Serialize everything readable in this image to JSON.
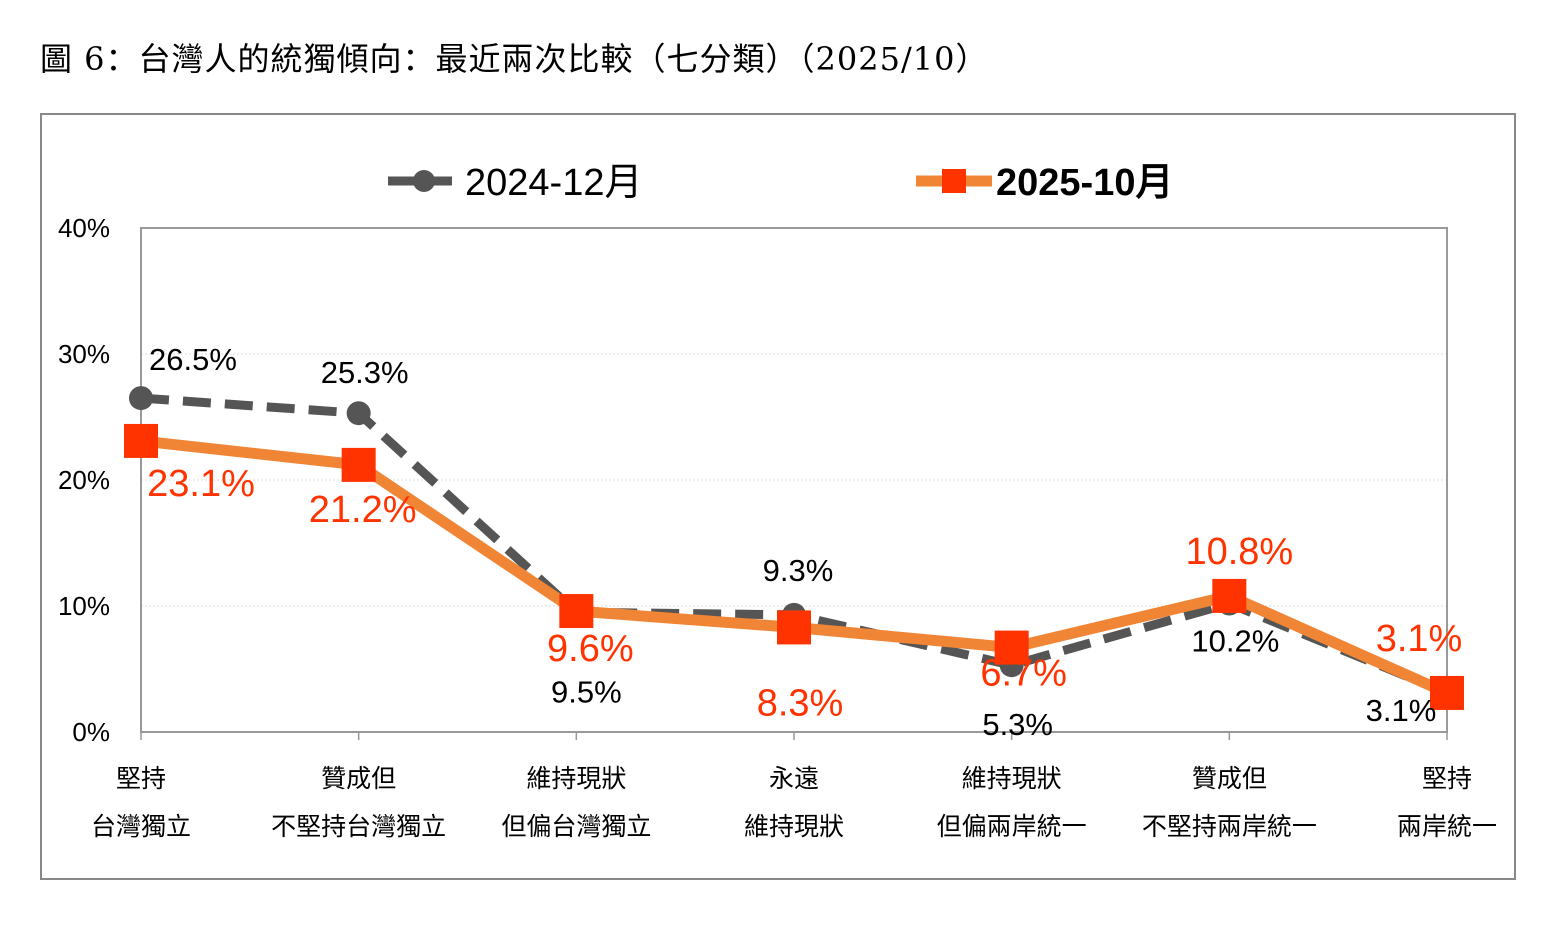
{
  "title": "圖 6：台灣人的統獨傾向：最近兩次比較（七分類）（2025/10）",
  "chart_data": {
    "type": "line",
    "title": "",
    "xlabel": "",
    "ylabel": "",
    "ylim": [
      0,
      40
    ],
    "yticks": [
      "0%",
      "10%",
      "20%",
      "30%",
      "40%"
    ],
    "grid": true,
    "legend": "top",
    "categories": [
      [
        "堅持",
        "台灣獨立"
      ],
      [
        "贊成但",
        "不堅持台灣獨立"
      ],
      [
        "維持現狀",
        "但偏台灣獨立"
      ],
      [
        "永遠",
        "維持現狀"
      ],
      [
        "維持現狀",
        "但偏兩岸統一"
      ],
      [
        "贊成但",
        "不堅持兩岸統一"
      ],
      [
        "堅持",
        "兩岸統一"
      ]
    ],
    "series": [
      {
        "name": "2024-12月",
        "values": [
          26.5,
          25.3,
          9.5,
          9.3,
          5.3,
          10.2,
          3.1
        ],
        "labels": [
          "26.5%",
          "25.3%",
          "9.5%",
          "9.3%",
          "5.3%",
          "10.2%",
          "3.1%"
        ],
        "color": "#555555",
        "style": "dashed",
        "marker": "circle"
      },
      {
        "name": "2025-10月",
        "values": [
          23.1,
          21.2,
          9.6,
          8.3,
          6.7,
          10.8,
          3.1
        ],
        "labels": [
          "23.1%",
          "21.2%",
          "9.6%",
          "8.3%",
          "6.7%",
          "10.8%",
          "3.1%"
        ],
        "color": "#F08536",
        "marker_color": "#FF3300",
        "label_color": "#FF3300",
        "style": "solid",
        "marker": "square"
      }
    ]
  }
}
